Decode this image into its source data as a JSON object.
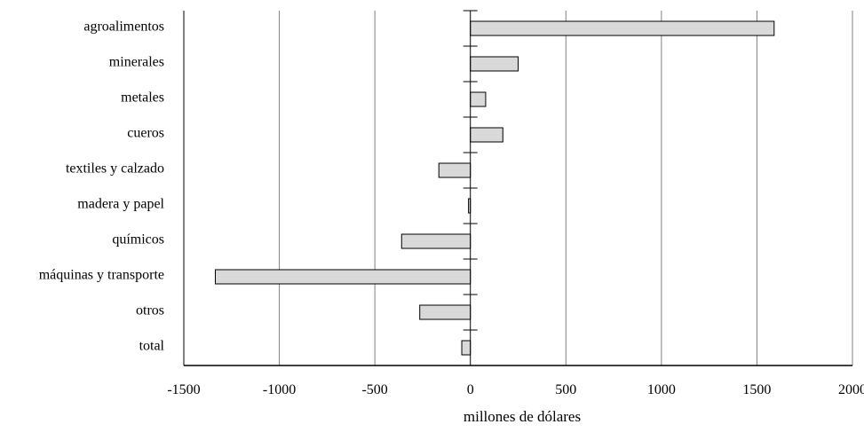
{
  "chart_data": {
    "type": "bar",
    "orientation": "horizontal",
    "categories": [
      "agroalimentos",
      "minerales",
      "metales",
      "cueros",
      "textiles y calzado",
      "madera y papel",
      "químicos",
      "máquinas y transporte",
      "otros",
      "total"
    ],
    "values": [
      1590,
      250,
      80,
      170,
      -165,
      -10,
      -360,
      -1335,
      -265,
      -45
    ],
    "xlabel": "millones de dólares",
    "ylabel": "",
    "xlim": [
      -1500,
      2000
    ],
    "xticks": [
      -1500,
      -1000,
      -500,
      0,
      500,
      1000,
      1500,
      2000
    ],
    "xtick_labels": [
      "-1500",
      "-1000",
      "-500",
      "0",
      "500",
      "1000",
      "1500",
      "2000"
    ],
    "grid": "vertical",
    "legend": "none",
    "bar_color": "#d9d9d9",
    "bar_edge_color": "#000000",
    "grid_color": "#808080"
  }
}
